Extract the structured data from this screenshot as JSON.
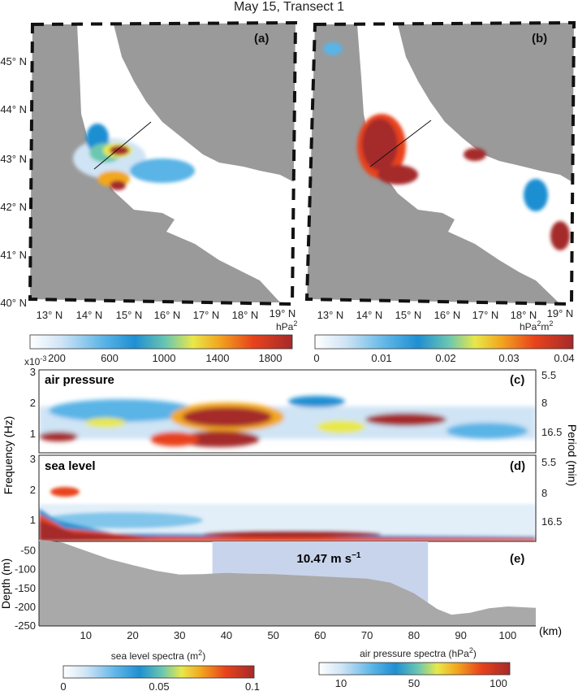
{
  "title": "May 15, Transect 1",
  "colors": {
    "land": "#9a9a9a",
    "sea": "#ffffff",
    "depth_fill": "#a9a9a9",
    "shade": "#c8d4ec",
    "scale": [
      "#ffffff",
      "#cfe4f5",
      "#5ab4e6",
      "#1f8fd2",
      "#6cc7b0",
      "#e8e84a",
      "#f2a71f",
      "#e8431b",
      "#a52a2a"
    ]
  },
  "maps": {
    "lat_labels": [
      "45° N",
      "44° N",
      "43° N",
      "42° N",
      "41° N",
      "40° N"
    ],
    "lon_labels": [
      "13° N",
      "14° N",
      "15° N",
      "16° N",
      "17° N",
      "18° N",
      "19° N"
    ],
    "a": {
      "label": "(a)",
      "unit": "hPa²",
      "colorbar_ticks": [
        "200",
        "600",
        "1000",
        "1400",
        "1800"
      ]
    },
    "b": {
      "label": "(b)",
      "unit": "hPa²m²",
      "colorbar_ticks": [
        "0",
        "0.01",
        "0.02",
        "0.03",
        "0.04"
      ]
    }
  },
  "panels": {
    "exponent": "x10",
    "exponent_power": "-3",
    "freq_axis_label": "Frequency (Hz)",
    "period_axis_label": "Period (min)",
    "c": {
      "label": "(c)",
      "title": "air pressure",
      "freq_ticks": [
        "3",
        "2",
        "1"
      ],
      "period_ticks": [
        "5.5",
        "8",
        "16.5"
      ]
    },
    "d": {
      "label": "(d)",
      "title": "sea level",
      "freq_ticks": [
        "3",
        "2",
        "1"
      ],
      "period_ticks": [
        "5.5",
        "8",
        "16.5"
      ]
    },
    "e": {
      "label": "(e)",
      "depth_axis_label": "Depth (m)",
      "depth_ticks": [
        "-50",
        "-100",
        "-150",
        "-200",
        "-250"
      ],
      "speed_label": "10.47 m s",
      "speed_exp": "−1"
    },
    "distance_ticks": [
      "10",
      "20",
      "30",
      "40",
      "50",
      "60",
      "70",
      "80",
      "90",
      "100"
    ],
    "distance_unit": "(km)"
  },
  "colorbars": {
    "sea_level": {
      "label": "sea level spectra (m",
      "label_sup": "2",
      "label_end": ")",
      "ticks": [
        "0",
        "0.05",
        "0.1"
      ]
    },
    "air_pressure": {
      "label": "air pressure spectra (hPa",
      "label_sup": "2",
      "label_end": ")",
      "ticks": [
        "10",
        "50",
        "100"
      ]
    }
  },
  "bathymetry": {
    "x_km": [
      0,
      5,
      10,
      15,
      20,
      25,
      30,
      35,
      40,
      45,
      50,
      55,
      60,
      65,
      70,
      75,
      80,
      85,
      88,
      92,
      96,
      100,
      106
    ],
    "depth_m": [
      -20,
      -28,
      -50,
      -72,
      -88,
      -103,
      -113,
      -112,
      -109,
      -111,
      -112,
      -115,
      -118,
      -121,
      -124,
      -135,
      -163,
      -205,
      -220,
      -215,
      -203,
      -198,
      -202
    ],
    "shade_km": [
      37,
      83
    ]
  }
}
